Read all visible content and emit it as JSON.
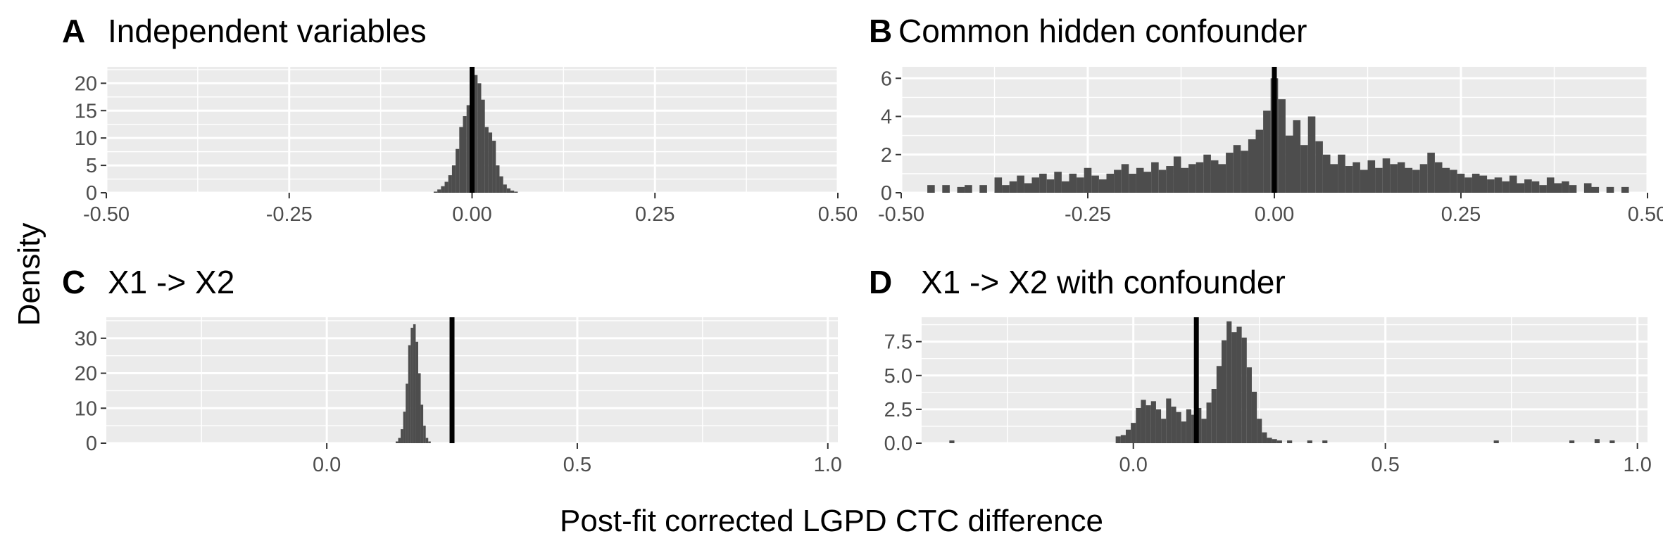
{
  "shared_xlabel": "Post-fit corrected LGPD CTC difference",
  "shared_ylabel": "Density",
  "colors": {
    "panel_bg": "#ebebeb",
    "grid_major": "#ffffff",
    "bar_fill": "#4d4d4d",
    "ref_line": "#000000",
    "axis_text": "#4d4d4d"
  },
  "chart_data": [
    {
      "type": "bar",
      "tag": "A",
      "title": "Independent variables",
      "xlim": [
        -0.5,
        0.5
      ],
      "ylim": [
        0,
        23
      ],
      "xticks": [
        -0.5,
        -0.25,
        0,
        0.25,
        0.5
      ],
      "xtick_labels": [
        "-0.50",
        "-0.25",
        "0.00",
        "0.25",
        "0.50"
      ],
      "yticks": [
        0,
        5,
        10,
        15,
        20
      ],
      "ytick_labels": [
        "0",
        "5",
        "10",
        "15",
        "20"
      ],
      "grid": true,
      "vline": 0.0,
      "bins": [
        {
          "x": -0.05,
          "y": 0.2
        },
        {
          "x": -0.045,
          "y": 0.6
        },
        {
          "x": -0.04,
          "y": 1.2
        },
        {
          "x": -0.035,
          "y": 2.0
        },
        {
          "x": -0.03,
          "y": 3.2
        },
        {
          "x": -0.025,
          "y": 5.0
        },
        {
          "x": -0.02,
          "y": 8.0
        },
        {
          "x": -0.015,
          "y": 12.0
        },
        {
          "x": -0.01,
          "y": 14.0
        },
        {
          "x": -0.005,
          "y": 16.0
        },
        {
          "x": 0.0,
          "y": 17.5
        },
        {
          "x": 0.005,
          "y": 21.5
        },
        {
          "x": 0.01,
          "y": 20.0
        },
        {
          "x": 0.015,
          "y": 17.0
        },
        {
          "x": 0.02,
          "y": 12.0
        },
        {
          "x": 0.025,
          "y": 11.0
        },
        {
          "x": 0.03,
          "y": 9.5
        },
        {
          "x": 0.035,
          "y": 5.0
        },
        {
          "x": 0.04,
          "y": 3.0
        },
        {
          "x": 0.045,
          "y": 1.5
        },
        {
          "x": 0.05,
          "y": 0.8
        },
        {
          "x": 0.055,
          "y": 0.4
        },
        {
          "x": 0.06,
          "y": 0.2
        }
      ]
    },
    {
      "type": "bar",
      "tag": "B",
      "title": "Common hidden confounder",
      "xlim": [
        -0.5,
        0.5
      ],
      "ylim": [
        0,
        6.6
      ],
      "xticks": [
        -0.5,
        -0.25,
        0,
        0.25,
        0.5
      ],
      "xtick_labels": [
        "-0.50",
        "-0.25",
        "0.00",
        "0.25",
        "0.50"
      ],
      "yticks": [
        0,
        2,
        4,
        6
      ],
      "ytick_labels": [
        "0",
        "2",
        "4",
        "6"
      ],
      "grid": true,
      "vline": 0.0,
      "bins": [
        {
          "x": -0.46,
          "y": 0.4
        },
        {
          "x": -0.44,
          "y": 0.4
        },
        {
          "x": -0.42,
          "y": 0.3
        },
        {
          "x": -0.41,
          "y": 0.4
        },
        {
          "x": -0.39,
          "y": 0.4
        },
        {
          "x": -0.37,
          "y": 0.8
        },
        {
          "x": -0.36,
          "y": 0.4
        },
        {
          "x": -0.35,
          "y": 0.6
        },
        {
          "x": -0.34,
          "y": 0.9
        },
        {
          "x": -0.33,
          "y": 0.5
        },
        {
          "x": -0.32,
          "y": 0.8
        },
        {
          "x": -0.31,
          "y": 1.0
        },
        {
          "x": -0.3,
          "y": 0.7
        },
        {
          "x": -0.29,
          "y": 1.1
        },
        {
          "x": -0.28,
          "y": 0.6
        },
        {
          "x": -0.27,
          "y": 1.0
        },
        {
          "x": -0.26,
          "y": 0.8
        },
        {
          "x": -0.25,
          "y": 1.3
        },
        {
          "x": -0.24,
          "y": 0.9
        },
        {
          "x": -0.23,
          "y": 0.7
        },
        {
          "x": -0.22,
          "y": 1.0
        },
        {
          "x": -0.21,
          "y": 1.2
        },
        {
          "x": -0.2,
          "y": 1.5
        },
        {
          "x": -0.19,
          "y": 1.0
        },
        {
          "x": -0.18,
          "y": 1.3
        },
        {
          "x": -0.17,
          "y": 1.1
        },
        {
          "x": -0.16,
          "y": 1.6
        },
        {
          "x": -0.15,
          "y": 1.2
        },
        {
          "x": -0.14,
          "y": 1.4
        },
        {
          "x": -0.13,
          "y": 1.9
        },
        {
          "x": -0.12,
          "y": 1.3
        },
        {
          "x": -0.11,
          "y": 1.5
        },
        {
          "x": -0.1,
          "y": 1.6
        },
        {
          "x": -0.09,
          "y": 2.0
        },
        {
          "x": -0.08,
          "y": 1.7
        },
        {
          "x": -0.07,
          "y": 1.5
        },
        {
          "x": -0.06,
          "y": 2.1
        },
        {
          "x": -0.05,
          "y": 2.5
        },
        {
          "x": -0.04,
          "y": 2.2
        },
        {
          "x": -0.03,
          "y": 2.8
        },
        {
          "x": -0.02,
          "y": 3.3
        },
        {
          "x": -0.01,
          "y": 4.3
        },
        {
          "x": 0.0,
          "y": 6.0
        },
        {
          "x": 0.01,
          "y": 4.9
        },
        {
          "x": 0.02,
          "y": 3.0
        },
        {
          "x": 0.03,
          "y": 3.8
        },
        {
          "x": 0.04,
          "y": 2.5
        },
        {
          "x": 0.05,
          "y": 4.0
        },
        {
          "x": 0.06,
          "y": 2.7
        },
        {
          "x": 0.07,
          "y": 2.0
        },
        {
          "x": 0.08,
          "y": 1.5
        },
        {
          "x": 0.09,
          "y": 2.0
        },
        {
          "x": 0.1,
          "y": 1.4
        },
        {
          "x": 0.11,
          "y": 1.6
        },
        {
          "x": 0.12,
          "y": 1.2
        },
        {
          "x": 0.13,
          "y": 1.7
        },
        {
          "x": 0.14,
          "y": 1.3
        },
        {
          "x": 0.15,
          "y": 1.8
        },
        {
          "x": 0.16,
          "y": 1.5
        },
        {
          "x": 0.17,
          "y": 1.6
        },
        {
          "x": 0.18,
          "y": 1.3
        },
        {
          "x": 0.19,
          "y": 1.2
        },
        {
          "x": 0.2,
          "y": 1.5
        },
        {
          "x": 0.21,
          "y": 2.1
        },
        {
          "x": 0.22,
          "y": 1.6
        },
        {
          "x": 0.23,
          "y": 1.3
        },
        {
          "x": 0.24,
          "y": 1.2
        },
        {
          "x": 0.25,
          "y": 1.0
        },
        {
          "x": 0.26,
          "y": 0.8
        },
        {
          "x": 0.27,
          "y": 1.0
        },
        {
          "x": 0.28,
          "y": 0.9
        },
        {
          "x": 0.29,
          "y": 0.7
        },
        {
          "x": 0.3,
          "y": 0.8
        },
        {
          "x": 0.31,
          "y": 0.6
        },
        {
          "x": 0.32,
          "y": 0.9
        },
        {
          "x": 0.33,
          "y": 0.5
        },
        {
          "x": 0.34,
          "y": 0.7
        },
        {
          "x": 0.35,
          "y": 0.6
        },
        {
          "x": 0.36,
          "y": 0.4
        },
        {
          "x": 0.37,
          "y": 0.8
        },
        {
          "x": 0.38,
          "y": 0.5
        },
        {
          "x": 0.39,
          "y": 0.6
        },
        {
          "x": 0.4,
          "y": 0.4
        },
        {
          "x": 0.42,
          "y": 0.5
        },
        {
          "x": 0.43,
          "y": 0.3
        },
        {
          "x": 0.45,
          "y": 0.3
        },
        {
          "x": 0.47,
          "y": 0.3
        }
      ]
    },
    {
      "type": "bar",
      "tag": "C",
      "title": "X1 -> X2",
      "xlim": [
        -0.44,
        1.02
      ],
      "ylim": [
        0,
        36
      ],
      "xticks": [
        0,
        0.5,
        1
      ],
      "xtick_labels": [
        "0.0",
        "0.5",
        "1.0"
      ],
      "yticks": [
        0,
        10,
        20,
        30
      ],
      "ytick_labels": [
        "0",
        "10",
        "20",
        "30"
      ],
      "grid": true,
      "vline": 0.25,
      "bins": [
        {
          "x": 0.14,
          "y": 0.5
        },
        {
          "x": 0.145,
          "y": 1.5
        },
        {
          "x": 0.15,
          "y": 4.0
        },
        {
          "x": 0.155,
          "y": 9.0
        },
        {
          "x": 0.16,
          "y": 17.0
        },
        {
          "x": 0.165,
          "y": 28.0
        },
        {
          "x": 0.17,
          "y": 33.0
        },
        {
          "x": 0.175,
          "y": 34.0
        },
        {
          "x": 0.18,
          "y": 29.0
        },
        {
          "x": 0.185,
          "y": 20.0
        },
        {
          "x": 0.19,
          "y": 11.0
        },
        {
          "x": 0.195,
          "y": 5.0
        },
        {
          "x": 0.2,
          "y": 1.5
        },
        {
          "x": 0.205,
          "y": 0.5
        }
      ]
    },
    {
      "type": "bar",
      "tag": "D",
      "title": "X1 -> X2 with confounder",
      "xlim": [
        -0.42,
        1.02
      ],
      "ylim": [
        0,
        9.3
      ],
      "xticks": [
        0,
        0.5,
        1
      ],
      "xtick_labels": [
        "0.0",
        "0.5",
        "1.0"
      ],
      "yticks": [
        0,
        2.5,
        5,
        7.5
      ],
      "ytick_labels": [
        "0.0",
        "2.5",
        "5.0",
        "7.5"
      ],
      "grid": true,
      "vline": 0.125,
      "bins": [
        {
          "x": -0.36,
          "y": 0.2
        },
        {
          "x": -0.03,
          "y": 0.5
        },
        {
          "x": -0.02,
          "y": 0.6
        },
        {
          "x": -0.01,
          "y": 1.0
        },
        {
          "x": 0.0,
          "y": 1.5
        },
        {
          "x": 0.01,
          "y": 2.6
        },
        {
          "x": 0.02,
          "y": 3.2
        },
        {
          "x": 0.03,
          "y": 2.8
        },
        {
          "x": 0.04,
          "y": 3.1
        },
        {
          "x": 0.05,
          "y": 2.5
        },
        {
          "x": 0.06,
          "y": 1.8
        },
        {
          "x": 0.07,
          "y": 3.3
        },
        {
          "x": 0.08,
          "y": 2.7
        },
        {
          "x": 0.09,
          "y": 2.3
        },
        {
          "x": 0.1,
          "y": 1.6
        },
        {
          "x": 0.11,
          "y": 2.5
        },
        {
          "x": 0.12,
          "y": 2.1
        },
        {
          "x": 0.13,
          "y": 2.6
        },
        {
          "x": 0.14,
          "y": 1.8
        },
        {
          "x": 0.15,
          "y": 3.0
        },
        {
          "x": 0.16,
          "y": 4.0
        },
        {
          "x": 0.17,
          "y": 5.7
        },
        {
          "x": 0.18,
          "y": 7.6
        },
        {
          "x": 0.19,
          "y": 9.0
        },
        {
          "x": 0.2,
          "y": 8.2
        },
        {
          "x": 0.21,
          "y": 8.6
        },
        {
          "x": 0.22,
          "y": 7.8
        },
        {
          "x": 0.23,
          "y": 5.6
        },
        {
          "x": 0.24,
          "y": 3.8
        },
        {
          "x": 0.25,
          "y": 1.8
        },
        {
          "x": 0.26,
          "y": 0.8
        },
        {
          "x": 0.27,
          "y": 0.4
        },
        {
          "x": 0.28,
          "y": 0.3
        },
        {
          "x": 0.29,
          "y": 0.2
        },
        {
          "x": 0.31,
          "y": 0.2
        },
        {
          "x": 0.35,
          "y": 0.2
        },
        {
          "x": 0.38,
          "y": 0.2
        },
        {
          "x": 0.72,
          "y": 0.2
        },
        {
          "x": 0.87,
          "y": 0.2
        },
        {
          "x": 0.92,
          "y": 0.3
        },
        {
          "x": 0.95,
          "y": 0.2
        }
      ]
    }
  ]
}
